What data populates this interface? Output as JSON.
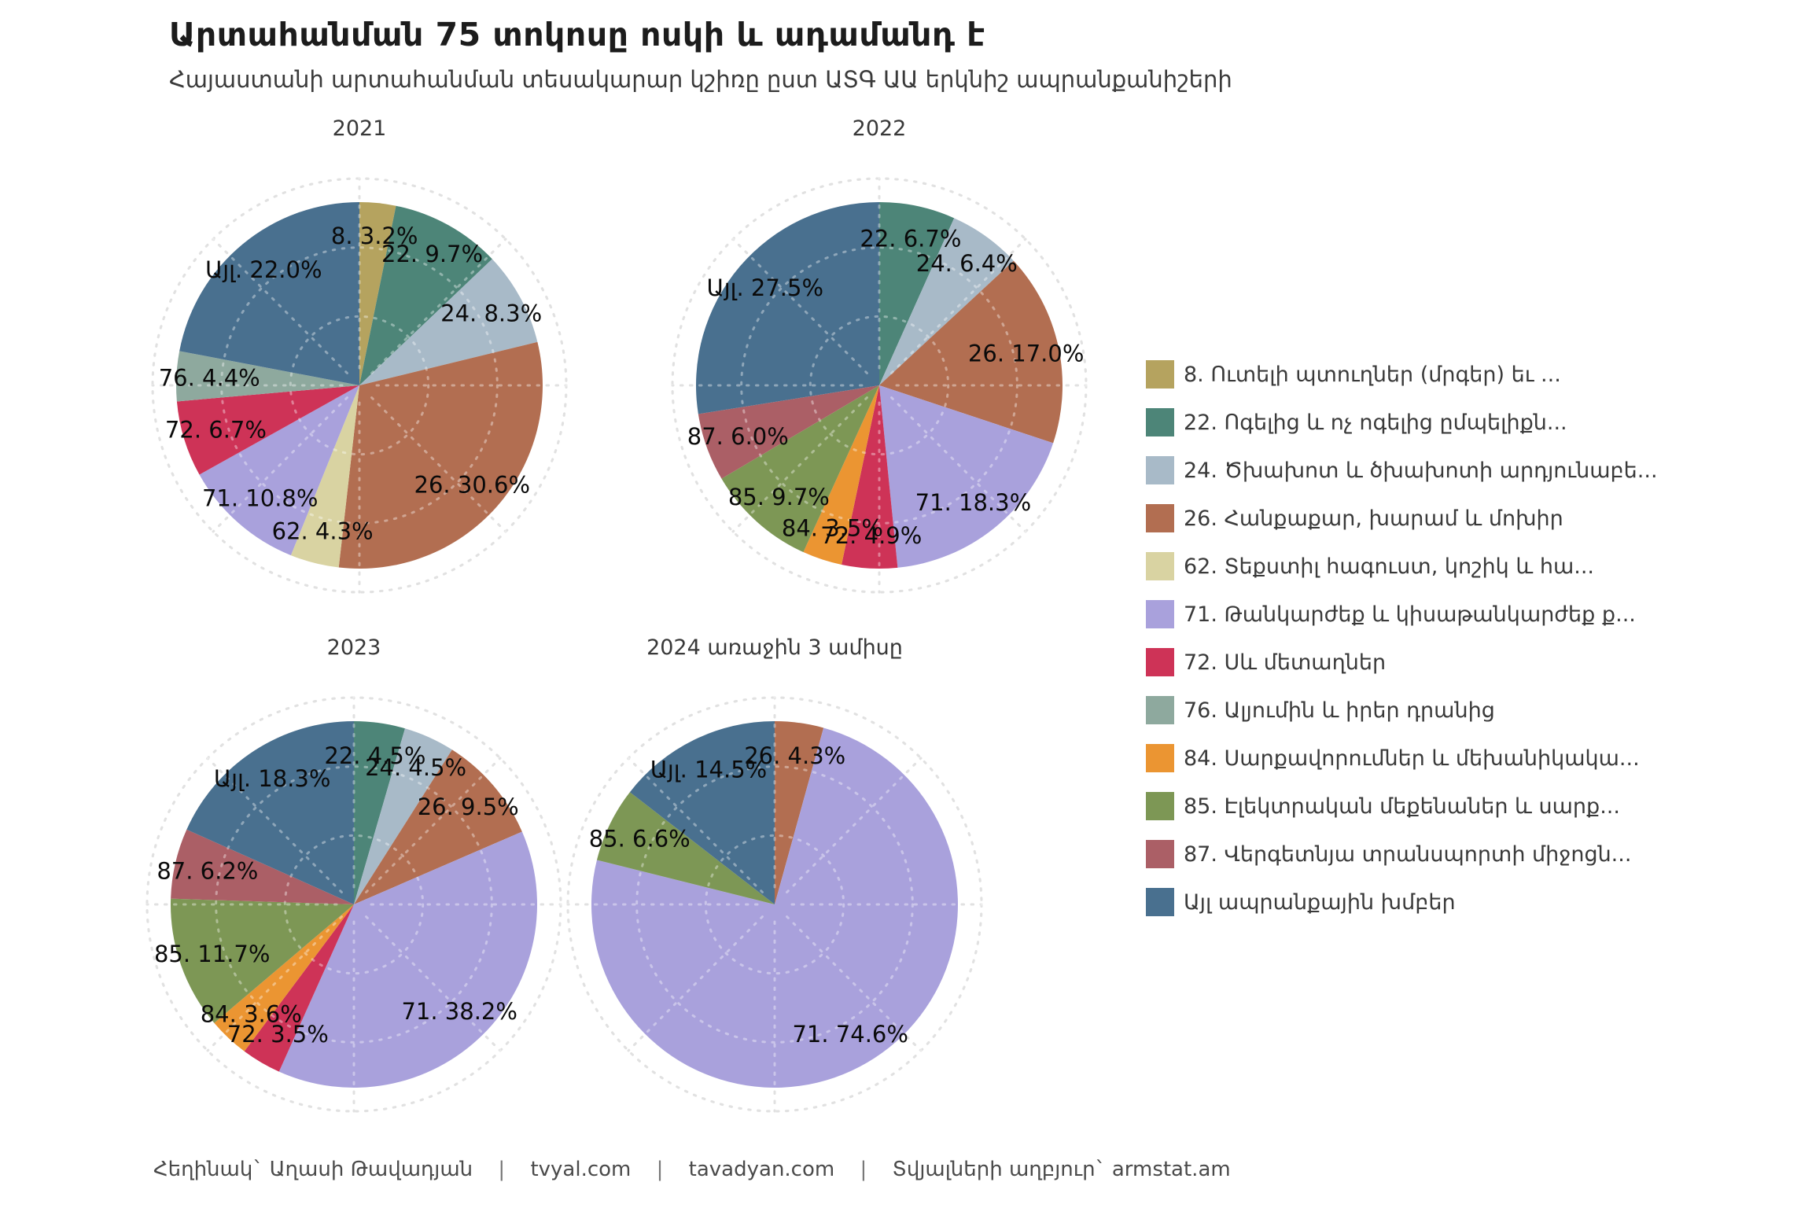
{
  "title": "Արտահանման 75 տոկոսը ոսկի և ադամանդ է",
  "subtitle": "Հայաստանի արտահանման տեսակարար կշիռը ըստ ԱՏԳ ԱԱ երկնիշ ապրանքանիշերի",
  "footer": {
    "author": "Հեղինակ` Աղասի Թավադյան",
    "site1": "tvyal.com",
    "site2": "tavadyan.com",
    "source": "Տվյալների աղբյուր` armstat.am",
    "separator": "|"
  },
  "palette": {
    "8": "#b5a35f",
    "22": "#4d8578",
    "24": "#a8bac8",
    "26": "#b26e51",
    "62": "#d9d3a2",
    "71": "#a9a1dc",
    "72": "#ce3357",
    "76": "#8ea99e",
    "84": "#eb9532",
    "85": "#7d9755",
    "87": "#ab5f66",
    "Այլ": "#49708f"
  },
  "legend": {
    "items": [
      {
        "code": "8",
        "label": "8. Ուտելի պտուղներ (մրգեր) եւ ..."
      },
      {
        "code": "22",
        "label": "22. Ոգելից և ոչ ոգելից ըմպելիքն..."
      },
      {
        "code": "24",
        "label": "24. Ծխախոտ և ծխախոտի արդյունաբե..."
      },
      {
        "code": "26",
        "label": "26. Հանքաքար, խարամ և մոխիր"
      },
      {
        "code": "62",
        "label": "62. Տեքստիլ հագուստ, կոշիկ և հա..."
      },
      {
        "code": "71",
        "label": "71. Թանկարժեք և կիսաթանկարժեք ք..."
      },
      {
        "code": "72",
        "label": "72. Սև մետաղներ"
      },
      {
        "code": "76",
        "label": "76. Ալյումին և իրեր դրանից"
      },
      {
        "code": "84",
        "label": "84. Սարքավորումներ և մեխանիկակա..."
      },
      {
        "code": "85",
        "label": "85. Էլեկտրական մեքենաներ և սարք..."
      },
      {
        "code": "87",
        "label": "87. Վերգետնյա տրանսպորտի միջոցն..."
      },
      {
        "code": "Այլ",
        "label": "Այլ ապրանքային խմբեր"
      }
    ]
  },
  "chart_data": [
    {
      "type": "pie",
      "title": "2021",
      "unit": "%",
      "slices": [
        {
          "code": "8",
          "value": 3.2
        },
        {
          "code": "22",
          "value": 9.7
        },
        {
          "code": "24",
          "value": 8.3
        },
        {
          "code": "26",
          "value": 30.6
        },
        {
          "code": "62",
          "value": 4.3
        },
        {
          "code": "71",
          "value": 10.8
        },
        {
          "code": "72",
          "value": 6.7
        },
        {
          "code": "76",
          "value": 4.4
        },
        {
          "code": "Այլ",
          "value": 22.0
        }
      ]
    },
    {
      "type": "pie",
      "title": "2022",
      "unit": "%",
      "slices": [
        {
          "code": "22",
          "value": 6.7
        },
        {
          "code": "24",
          "value": 6.4
        },
        {
          "code": "26",
          "value": 17.0
        },
        {
          "code": "71",
          "value": 18.3
        },
        {
          "code": "72",
          "value": 4.9
        },
        {
          "code": "84",
          "value": 3.5
        },
        {
          "code": "85",
          "value": 9.7
        },
        {
          "code": "87",
          "value": 6.0
        },
        {
          "code": "Այլ",
          "value": 27.5
        }
      ]
    },
    {
      "type": "pie",
      "title": "2023",
      "unit": "%",
      "slices": [
        {
          "code": "22",
          "value": 4.5
        },
        {
          "code": "24",
          "value": 4.5
        },
        {
          "code": "26",
          "value": 9.5
        },
        {
          "code": "71",
          "value": 38.2
        },
        {
          "code": "72",
          "value": 3.5
        },
        {
          "code": "84",
          "value": 3.6
        },
        {
          "code": "85",
          "value": 11.7
        },
        {
          "code": "87",
          "value": 6.2
        },
        {
          "code": "Այլ",
          "value": 18.3
        }
      ]
    },
    {
      "type": "pie",
      "title": "2024 առաջին 3 ամիսը",
      "unit": "%",
      "slices": [
        {
          "code": "26",
          "value": 4.3
        },
        {
          "code": "71",
          "value": 74.6
        },
        {
          "code": "85",
          "value": 6.6
        },
        {
          "code": "Այլ",
          "value": 14.5
        }
      ]
    }
  ]
}
